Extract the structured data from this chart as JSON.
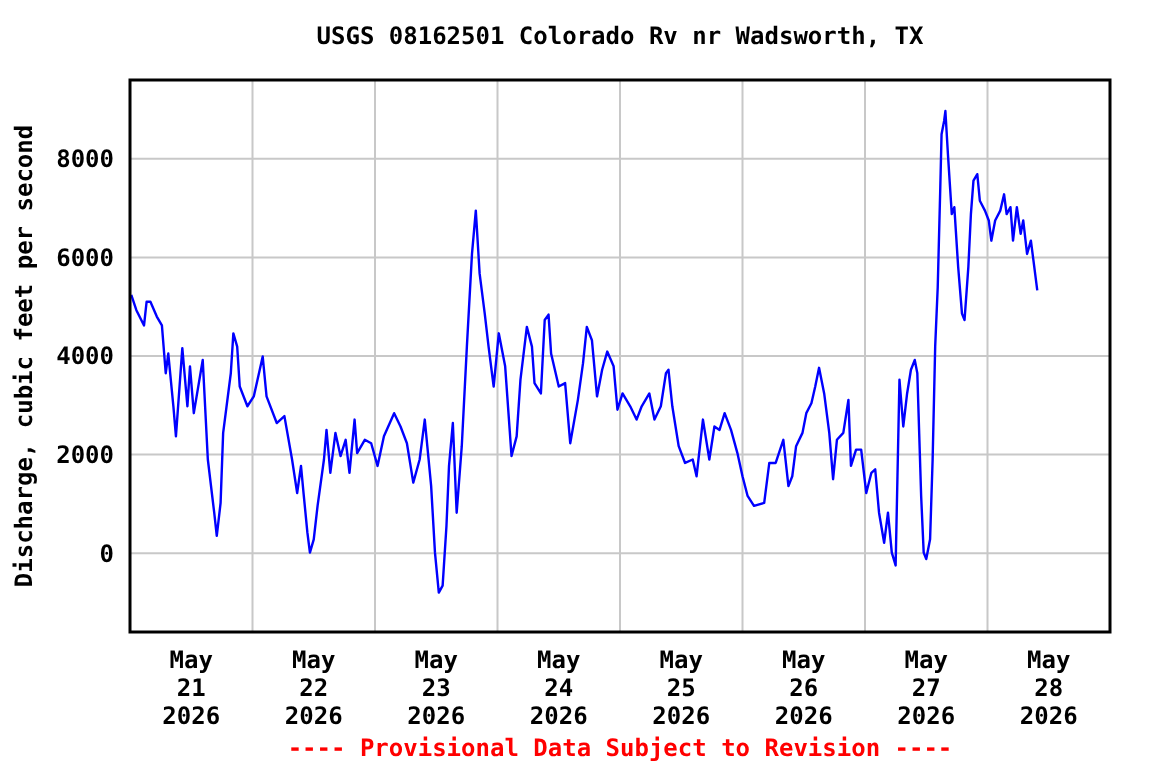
{
  "chart_data": {
    "type": "line",
    "title": "USGS 08162501 Colorado Rv nr Wadsworth, TX",
    "ylabel": "Discharge, cubic feet per second",
    "annotations": [
      "---- Provisional Data Subject to Revision ----"
    ],
    "xlim": [
      "2026-05-21T00:00",
      "2026-05-29T00:00"
    ],
    "xticks": [
      {
        "value": "2026-05-21T12:00",
        "label": "May\n21\n2026"
      },
      {
        "value": "2026-05-22T00:00",
        "label": null
      },
      {
        "value": "2026-05-22T12:00",
        "label": "May\n22\n2026"
      },
      {
        "value": "2026-05-23T00:00",
        "label": null
      },
      {
        "value": "2026-05-23T12:00",
        "label": "May\n23\n2026"
      },
      {
        "value": "2026-05-24T00:00",
        "label": null
      },
      {
        "value": "2026-05-24T12:00",
        "label": "May\n24\n2026"
      },
      {
        "value": "2026-05-25T00:00",
        "label": null
      },
      {
        "value": "2026-05-25T12:00",
        "label": "May\n25\n2026"
      },
      {
        "value": "2026-05-26T00:00",
        "label": null
      },
      {
        "value": "2026-05-26T12:00",
        "label": "May\n26\n2026"
      },
      {
        "value": "2026-05-27T00:00",
        "label": null
      },
      {
        "value": "2026-05-27T12:00",
        "label": "May\n27\n2026"
      },
      {
        "value": "2026-05-28T00:00",
        "label": null
      },
      {
        "value": "2026-05-28T12:00",
        "label": "May\n28\n2026"
      }
    ],
    "ylim": [
      -1600,
      9600
    ],
    "yticks": [
      0,
      2000,
      4000,
      6000,
      8000
    ],
    "grid": true,
    "x": [
      "2026-05-21T00:15",
      "2026-05-21T01:15",
      "2026-05-21T02:45",
      "2026-05-21T03:15",
      "2026-05-21T04:00",
      "2026-05-21T05:15",
      "2026-05-21T06:15",
      "2026-05-21T07:00",
      "2026-05-21T07:30",
      "2026-05-21T08:30",
      "2026-05-21T09:00",
      "2026-05-21T10:15",
      "2026-05-21T11:15",
      "2026-05-21T11:45",
      "2026-05-21T12:30",
      "2026-05-21T14:15",
      "2026-05-21T15:15",
      "2026-05-21T16:30",
      "2026-05-21T17:00",
      "2026-05-21T17:45",
      "2026-05-21T18:15",
      "2026-05-21T19:45",
      "2026-05-21T20:15",
      "2026-05-21T21:00",
      "2026-05-21T21:30",
      "2026-05-21T23:00",
      "2026-05-22T00:15",
      "2026-05-22T02:00",
      "2026-05-22T02:45",
      "2026-05-22T04:45",
      "2026-05-22T06:15",
      "2026-05-22T07:45",
      "2026-05-22T08:45",
      "2026-05-22T09:30",
      "2026-05-22T10:00",
      "2026-05-22T10:45",
      "2026-05-22T11:15",
      "2026-05-22T12:00",
      "2026-05-22T12:45",
      "2026-05-22T14:00",
      "2026-05-22T14:30",
      "2026-05-22T15:15",
      "2026-05-22T16:15",
      "2026-05-22T17:15",
      "2026-05-22T18:15",
      "2026-05-22T19:00",
      "2026-05-22T20:00",
      "2026-05-22T20:30",
      "2026-05-22T22:00",
      "2026-05-22T23:15",
      "2026-05-23T00:30",
      "2026-05-23T01:45",
      "2026-05-23T03:45",
      "2026-05-23T05:00",
      "2026-05-23T06:15",
      "2026-05-23T07:30",
      "2026-05-23T08:45",
      "2026-05-23T09:45",
      "2026-05-23T10:15",
      "2026-05-23T11:00",
      "2026-05-23T11:45",
      "2026-05-23T12:30",
      "2026-05-23T13:15",
      "2026-05-23T14:00",
      "2026-05-23T14:30",
      "2026-05-23T15:15",
      "2026-05-23T16:00",
      "2026-05-23T17:00",
      "2026-05-23T18:00",
      "2026-05-23T19:00",
      "2026-05-23T19:45",
      "2026-05-23T20:30",
      "2026-05-23T21:30",
      "2026-05-23T22:15",
      "2026-05-23T23:15",
      "2026-05-24T00:15",
      "2026-05-24T01:30",
      "2026-05-24T02:45",
      "2026-05-24T03:45",
      "2026-05-24T04:30",
      "2026-05-24T05:45",
      "2026-05-24T06:45",
      "2026-05-24T07:15",
      "2026-05-24T08:30",
      "2026-05-24T09:15",
      "2026-05-24T10:00",
      "2026-05-24T10:30",
      "2026-05-24T12:00",
      "2026-05-24T13:15",
      "2026-05-24T14:15",
      "2026-05-24T15:45",
      "2026-05-24T16:45",
      "2026-05-24T17:30",
      "2026-05-24T18:30",
      "2026-05-24T19:30",
      "2026-05-24T20:30",
      "2026-05-24T21:30",
      "2026-05-24T22:45",
      "2026-05-24T23:30",
      "2026-05-25T00:30",
      "2026-05-25T02:00",
      "2026-05-25T03:15",
      "2026-05-25T04:15",
      "2026-05-25T05:45",
      "2026-05-25T06:45",
      "2026-05-25T08:00",
      "2026-05-25T09:00",
      "2026-05-25T09:30",
      "2026-05-25T10:15",
      "2026-05-25T11:30",
      "2026-05-25T12:45",
      "2026-05-25T14:15",
      "2026-05-25T15:00",
      "2026-05-25T16:15",
      "2026-05-25T17:30",
      "2026-05-25T18:30",
      "2026-05-25T19:30",
      "2026-05-25T20:30",
      "2026-05-25T21:45",
      "2026-05-25T23:00",
      "2026-05-26T00:00",
      "2026-05-26T01:00",
      "2026-05-26T02:15",
      "2026-05-26T04:15",
      "2026-05-26T05:15",
      "2026-05-26T06:30",
      "2026-05-26T08:00",
      "2026-05-26T09:00",
      "2026-05-26T09:45",
      "2026-05-26T10:30",
      "2026-05-26T11:45",
      "2026-05-26T12:30",
      "2026-05-26T13:30",
      "2026-05-26T14:15",
      "2026-05-26T15:00",
      "2026-05-26T16:00",
      "2026-05-26T17:00",
      "2026-05-26T17:45",
      "2026-05-26T18:30",
      "2026-05-26T19:45",
      "2026-05-26T20:45",
      "2026-05-26T21:15",
      "2026-05-26T22:15",
      "2026-05-26T23:15",
      "2026-05-27T00:15",
      "2026-05-27T01:15",
      "2026-05-27T02:00",
      "2026-05-27T02:45",
      "2026-05-27T03:45",
      "2026-05-27T04:30",
      "2026-05-27T05:15",
      "2026-05-27T06:00",
      "2026-05-27T06:45",
      "2026-05-27T07:30",
      "2026-05-27T08:15",
      "2026-05-27T09:00",
      "2026-05-27T09:45",
      "2026-05-27T10:15",
      "2026-05-27T11:00",
      "2026-05-27T11:30",
      "2026-05-27T12:00",
      "2026-05-27T12:45",
      "2026-05-27T13:15",
      "2026-05-27T13:45",
      "2026-05-27T14:15",
      "2026-05-27T14:45",
      "2026-05-27T15:00",
      "2026-05-27T15:30",
      "2026-05-27T15:45",
      "2026-05-27T16:15",
      "2026-05-27T17:00",
      "2026-05-27T17:30",
      "2026-05-27T18:15",
      "2026-05-27T19:00",
      "2026-05-27T19:30",
      "2026-05-27T20:15",
      "2026-05-27T20:45",
      "2026-05-27T21:15",
      "2026-05-27T22:00",
      "2026-05-27T22:30",
      "2026-05-27T23:30",
      "2026-05-28T00:15",
      "2026-05-28T00:45",
      "2026-05-28T01:30",
      "2026-05-28T02:30",
      "2026-05-28T03:15",
      "2026-05-28T03:45",
      "2026-05-28T04:30",
      "2026-05-28T05:00",
      "2026-05-28T05:45",
      "2026-05-28T06:30",
      "2026-05-28T07:00",
      "2026-05-28T07:45",
      "2026-05-28T08:30",
      "2026-05-28T09:00",
      "2026-05-28T09:45"
    ],
    "series": [
      {
        "color": "#0000ff",
        "values": [
          5240,
          4930,
          4620,
          5100,
          5100,
          4800,
          4620,
          3650,
          4050,
          2980,
          2370,
          4160,
          2980,
          3790,
          2840,
          3920,
          1900,
          820,
          350,
          1020,
          2440,
          3650,
          4460,
          4190,
          3380,
          2980,
          3180,
          3990,
          3180,
          2640,
          2780,
          1900,
          1220,
          1770,
          1220,
          420,
          10,
          280,
          960,
          1900,
          2500,
          1630,
          2440,
          1970,
          2300,
          1630,
          2710,
          2030,
          2300,
          2230,
          1770,
          2370,
          2840,
          2570,
          2230,
          1430,
          1900,
          2710,
          2170,
          1360,
          10,
          -800,
          -660,
          550,
          1770,
          2640,
          820,
          2170,
          4190,
          6070,
          6950,
          5670,
          4860,
          4190,
          3380,
          4460,
          3790,
          1970,
          2370,
          3520,
          4590,
          4190,
          3450,
          3240,
          4730,
          4840,
          4050,
          3380,
          3450,
          2230,
          3110,
          3850,
          4590,
          4320,
          3180,
          3720,
          4090,
          3790,
          2910,
          3240,
          2980,
          2710,
          2980,
          3240,
          2710,
          2980,
          3650,
          3720,
          2980,
          2170,
          1830,
          1900,
          1560,
          2710,
          1900,
          2570,
          2500,
          2840,
          2500,
          2030,
          1560,
          1160,
          960,
          1020,
          1830,
          1830,
          2300,
          1360,
          1560,
          2170,
          2440,
          2840,
          3040,
          3380,
          3760,
          3240,
          2440,
          1500,
          2300,
          2440,
          3110,
          1770,
          2100,
          2100,
          1220,
          1630,
          1700,
          820,
          210,
          820,
          10,
          -250,
          3520,
          2570,
          3240,
          3720,
          3920,
          3650,
          1160,
          10,
          -120,
          280,
          1900,
          4190,
          5400,
          7420,
          8500,
          8770,
          8970,
          8090,
          6880,
          7020,
          5810,
          4860,
          4730,
          5810,
          6880,
          7560,
          7690,
          7150,
          6950,
          6750,
          6340,
          6750,
          6950,
          7280,
          6880,
          7020,
          6340,
          7020,
          6480,
          6750,
          6070,
          6340,
          5940,
          5330
        ]
      }
    ]
  }
}
